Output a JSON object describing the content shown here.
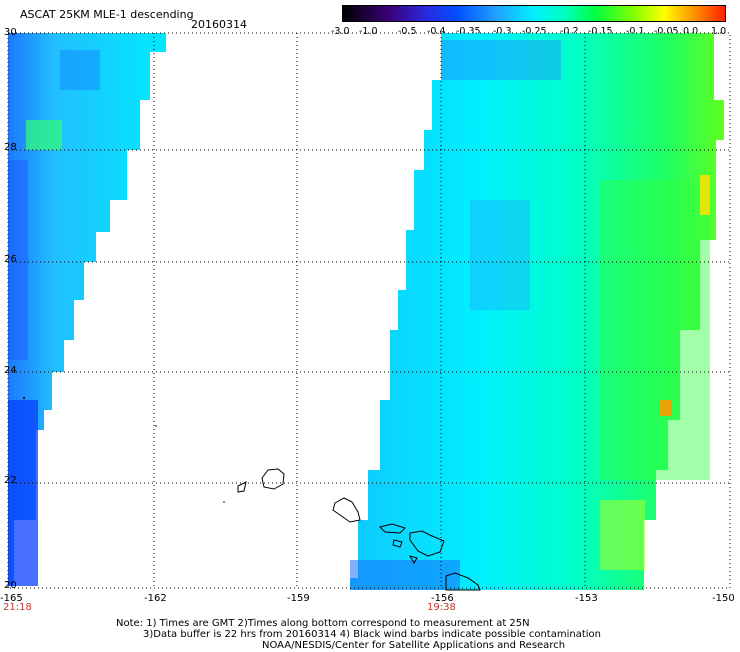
{
  "header": {
    "title": "ASCAT 25KM MLE-1 descending",
    "date": "20160314"
  },
  "colorbar": {
    "labels": [
      "-3.0",
      "-1.0",
      "-0.5",
      "-0.4",
      "-0.35",
      "-0.3",
      "-0.25",
      "-0.2",
      "-0.15",
      "-0.1",
      "-0.05",
      "0.0",
      "1.0"
    ],
    "colors": [
      "#1a0030",
      "#4b0082",
      "#3a2fd0",
      "#1060ff",
      "#2aa0ff",
      "#30d8ff",
      "#00ffe0",
      "#40ff90",
      "#30ff30",
      "#a0ff20",
      "#ffff00",
      "#ff9900",
      "#ff2200"
    ]
  },
  "map": {
    "x_ticks": [
      "-165",
      "-162",
      "-159",
      "-156",
      "-153",
      "-150"
    ],
    "y_ticks": [
      "20",
      "22",
      "24",
      "26",
      "28",
      "30"
    ],
    "times": [
      {
        "label": "21:18",
        "lon": -165
      },
      {
        "label": "19:38",
        "lon": -156
      }
    ],
    "extent": {
      "lon": [
        -165,
        -150
      ],
      "lat": [
        20,
        30
      ]
    }
  },
  "notes": [
    "Note: 1) Times are GMT 2)Times along bottom correspond to measurement at 25N",
    "3)Data buffer is 22 hrs from 20160314 4) Black wind barbs indicate possible contamination",
    "NOAA/NESDIS/Center for Satellite Applications and Research"
  ]
}
